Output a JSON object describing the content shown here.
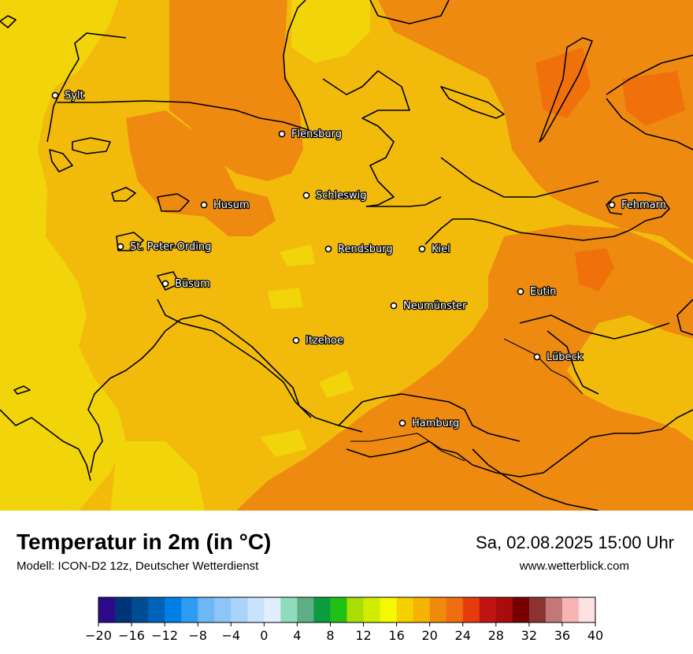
{
  "title": "Temperatur in 2m (in °C)",
  "subtitle": "Modell: ICON-D2 12z, Deutscher Wetterdienst",
  "datetime": "Sa, 02.08.2025 15:00 Uhr",
  "website": "www.wetterblick.com",
  "cities": [
    {
      "name": "Sylt"
    },
    {
      "name": "Flensburg"
    },
    {
      "name": "Schleswig"
    },
    {
      "name": "Husum"
    },
    {
      "name": "St. Peter-Ording"
    },
    {
      "name": "Rendsburg"
    },
    {
      "name": "Kiel"
    },
    {
      "name": "Fehmarn"
    },
    {
      "name": "Büsum"
    },
    {
      "name": "Eutin"
    },
    {
      "name": "Neumünster"
    },
    {
      "name": "Itzehoe"
    },
    {
      "name": "Lübeck"
    },
    {
      "name": "Hamburg"
    }
  ],
  "legend": {
    "unit": "°C",
    "min": -20,
    "max": 40,
    "step": 2,
    "tick_labels": [
      "−20",
      "−16",
      "−12",
      "−8",
      "−4",
      "0",
      "4",
      "8",
      "12",
      "16",
      "20",
      "24",
      "28",
      "32",
      "36",
      "40"
    ],
    "colors": [
      "#2c0a8a",
      "#00347a",
      "#004c92",
      "#0062b8",
      "#0080e6",
      "#2e9cf2",
      "#6cb7f6",
      "#8ec5f8",
      "#abd3fa",
      "#c8e3fb",
      "#e1eefc",
      "#8fdcbc",
      "#5faf86",
      "#0a9c3e",
      "#20c014",
      "#a8de04",
      "#d2ec00",
      "#f4f800",
      "#f4d000",
      "#f4b400",
      "#f08a0c",
      "#f06c10",
      "#e63c0c",
      "#c01414",
      "#a80c0c",
      "#780000",
      "#8c3232",
      "#c27878",
      "#f8b4b4",
      "#fde0e0"
    ]
  },
  "map_colors": {
    "base": "#f2bb0c",
    "warm": "#ee8a10",
    "hot": "#f0700c",
    "cool": "#f2d40a",
    "coast": "#000000"
  }
}
